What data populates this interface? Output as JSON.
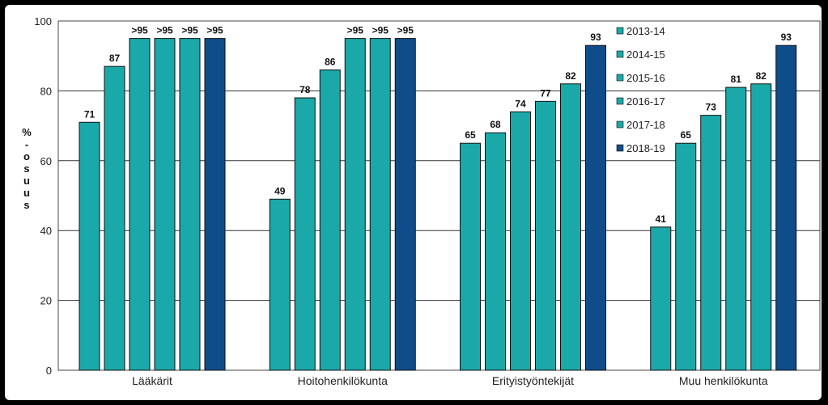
{
  "chart_data": {
    "type": "bar",
    "categories": [
      "Lääkärit",
      "Hoitohenkilökunta",
      "Erityistyöntekijät",
      "Muu henkilökunta"
    ],
    "series": [
      {
        "name": "2013-14",
        "values": [
          71,
          49,
          65,
          41
        ],
        "labels": [
          "71",
          "49",
          "65",
          "41"
        ],
        "color": "#1ba8a8"
      },
      {
        "name": "2014-15",
        "values": [
          87,
          78,
          68,
          65
        ],
        "labels": [
          "87",
          "78",
          "68",
          "65"
        ],
        "color": "#1ba8a8"
      },
      {
        "name": "2015-16",
        "values": [
          95,
          86,
          74,
          73
        ],
        "labels": [
          ">95",
          "86",
          "74",
          "73"
        ],
        "color": "#1ba8a8"
      },
      {
        "name": "2016-17",
        "values": [
          95,
          95,
          77,
          81
        ],
        "labels": [
          ">95",
          ">95",
          "77",
          "81"
        ],
        "color": "#1ba8a8"
      },
      {
        "name": "2017-18",
        "values": [
          95,
          95,
          82,
          82
        ],
        "labels": [
          ">95",
          ">95",
          "82",
          "82"
        ],
        "color": "#1ba8a8"
      },
      {
        "name": "2018-19",
        "values": [
          95,
          95,
          93,
          93
        ],
        "labels": [
          ">95",
          ">95",
          "93",
          "93"
        ],
        "color": "#0f4d8a"
      }
    ],
    "ylabel": "%-osuus",
    "ylim": [
      0,
      100
    ],
    "yticks": [
      0,
      20,
      40,
      60,
      80,
      100
    ],
    "grid": true,
    "legend": "top-right"
  }
}
